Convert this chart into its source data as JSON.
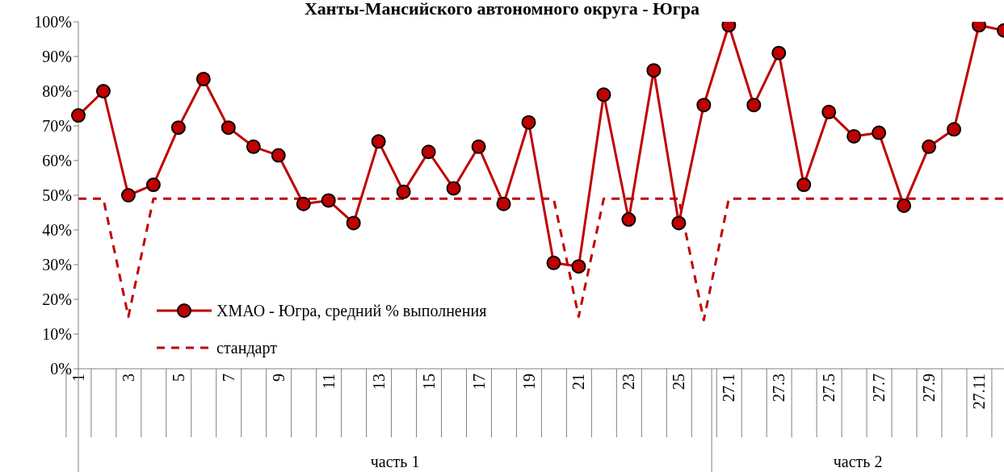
{
  "chart_data": {
    "type": "line",
    "title": "Ханты-Мансийского автономного округа - Югра",
    "categories": [
      "1",
      null,
      "3",
      null,
      "5",
      null,
      "7",
      null,
      "9",
      null,
      "11",
      null,
      "13",
      null,
      "15",
      null,
      "17",
      null,
      "19",
      null,
      "21",
      null,
      "23",
      null,
      "25",
      null,
      "27.1",
      null,
      "27.3",
      null,
      "27.5",
      null,
      "27.7",
      null,
      "27.9",
      null,
      "27.11",
      null
    ],
    "series": [
      {
        "name": "ХМАО - Югра, средний % выполнения",
        "color": "#c00000",
        "marker": "circle",
        "line_style": "solid",
        "values": [
          73,
          80,
          50,
          53,
          69.5,
          83.5,
          69.5,
          64,
          61.5,
          47.5,
          48.5,
          42,
          65.5,
          51,
          62.5,
          52,
          64,
          47.5,
          71,
          30.5,
          29.5,
          79,
          43,
          86,
          42,
          76,
          99,
          76,
          91,
          53,
          74,
          67,
          68,
          47,
          64,
          69,
          99,
          97.5
        ]
      },
      {
        "name": "стандарт",
        "color": "#c00000",
        "marker": "none",
        "line_style": "dashed",
        "values": [
          49,
          49,
          15,
          49,
          49,
          49,
          49,
          49,
          49,
          49,
          49,
          49,
          49,
          49,
          49,
          49,
          49,
          49,
          49,
          49,
          15,
          49,
          49,
          49,
          49,
          14,
          49,
          49,
          49,
          49,
          49,
          49,
          49,
          49,
          49,
          49,
          49,
          49
        ]
      }
    ],
    "ylim": [
      0,
      100
    ],
    "yticks": [
      {
        "value": 0,
        "label": "0%"
      },
      {
        "value": 10,
        "label": "10%"
      },
      {
        "value": 20,
        "label": "20%"
      },
      {
        "value": 30,
        "label": "30%"
      },
      {
        "value": 40,
        "label": "40%"
      },
      {
        "value": 50,
        "label": "50%"
      },
      {
        "value": 60,
        "label": "60%"
      },
      {
        "value": 70,
        "label": "70%"
      },
      {
        "value": 80,
        "label": "80%"
      },
      {
        "value": 90,
        "label": "90%"
      },
      {
        "value": 100,
        "label": "100%"
      }
    ],
    "grid": false,
    "legend": "bottom left",
    "annotations": [
      "часть 1",
      "часть 2"
    ]
  }
}
